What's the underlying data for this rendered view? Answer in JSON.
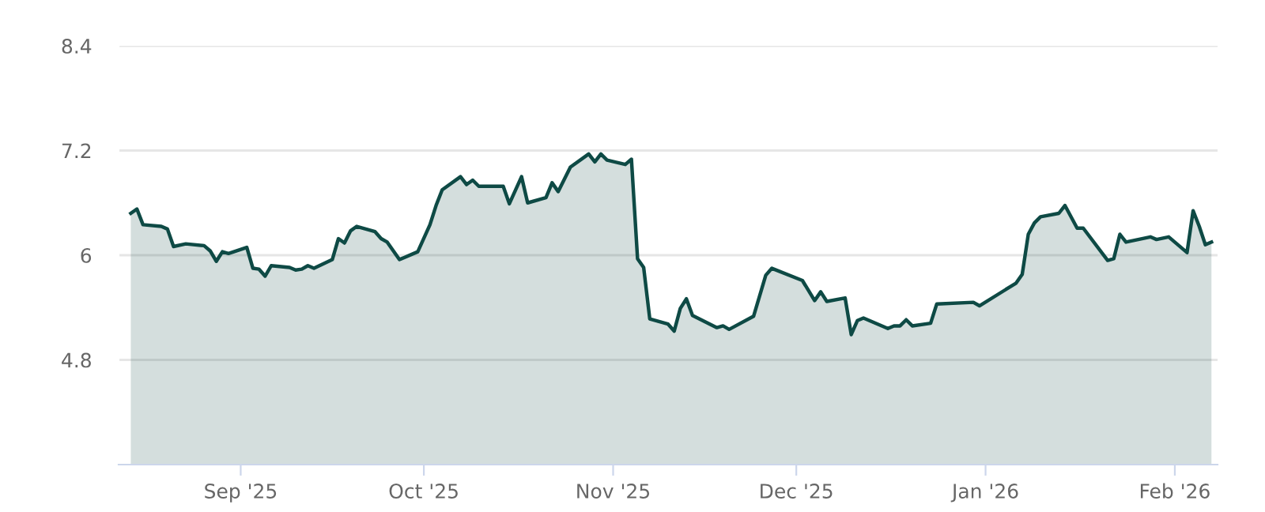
{
  "chart_data": {
    "type": "area",
    "x": [
      "2025-08-14",
      "2025-08-15",
      "2025-08-16",
      "2025-08-19",
      "2025-08-20",
      "2025-08-21",
      "2025-08-23",
      "2025-08-26",
      "2025-08-27",
      "2025-08-28",
      "2025-08-29",
      "2025-08-30",
      "2025-09-02",
      "2025-09-03",
      "2025-09-04",
      "2025-09-05",
      "2025-09-06",
      "2025-09-09",
      "2025-09-10",
      "2025-09-11",
      "2025-09-12",
      "2025-09-13",
      "2025-09-16",
      "2025-09-17",
      "2025-09-18",
      "2025-09-19",
      "2025-09-20",
      "2025-09-23",
      "2025-09-24",
      "2025-09-25",
      "2025-09-27",
      "2025-09-30",
      "2025-10-02",
      "2025-10-03",
      "2025-10-04",
      "2025-10-07",
      "2025-10-08",
      "2025-10-09",
      "2025-10-10",
      "2025-10-14",
      "2025-10-15",
      "2025-10-17",
      "2025-10-18",
      "2025-10-21",
      "2025-10-22",
      "2025-10-23",
      "2025-10-25",
      "2025-10-28",
      "2025-10-29",
      "2025-10-30",
      "2025-10-31",
      "2025-11-03",
      "2025-11-04",
      "2025-11-05",
      "2025-11-06",
      "2025-11-07",
      "2025-11-10",
      "2025-11-11",
      "2025-11-12",
      "2025-11-13",
      "2025-11-14",
      "2025-11-18",
      "2025-11-19",
      "2025-11-20",
      "2025-11-24",
      "2025-11-26",
      "2025-11-27",
      "2025-12-02",
      "2025-12-04",
      "2025-12-05",
      "2025-12-06",
      "2025-12-09",
      "2025-12-10",
      "2025-12-11",
      "2025-12-12",
      "2025-12-16",
      "2025-12-17",
      "2025-12-18",
      "2025-12-19",
      "2025-12-20",
      "2025-12-23",
      "2025-12-24",
      "2025-12-30",
      "2025-12-31",
      "2026-01-06",
      "2026-01-07",
      "2026-01-08",
      "2026-01-09",
      "2026-01-10",
      "2026-01-13",
      "2026-01-14",
      "2026-01-16",
      "2026-01-17",
      "2026-01-21",
      "2026-01-22",
      "2026-01-23",
      "2026-01-24",
      "2026-01-28",
      "2026-01-29",
      "2026-01-31",
      "2026-02-03",
      "2026-02-04",
      "2026-02-05",
      "2026-02-06",
      "2026-02-07"
    ],
    "series": [
      {
        "color": "#0e4a45",
        "values": [
          6.48,
          6.53,
          6.35,
          6.33,
          6.3,
          6.1,
          6.13,
          6.11,
          6.05,
          5.93,
          6.04,
          6.02,
          6.09,
          5.85,
          5.84,
          5.76,
          5.88,
          5.86,
          5.83,
          5.84,
          5.88,
          5.85,
          5.95,
          6.19,
          6.14,
          6.28,
          6.33,
          6.27,
          6.19,
          6.15,
          5.95,
          6.04,
          6.35,
          6.57,
          6.75,
          6.9,
          6.81,
          6.86,
          6.79,
          6.79,
          6.59,
          6.9,
          6.6,
          6.66,
          6.83,
          6.73,
          7.01,
          7.16,
          7.07,
          7.16,
          7.09,
          7.04,
          7.1,
          5.96,
          5.86,
          5.27,
          5.21,
          5.13,
          5.39,
          5.5,
          5.31,
          5.17,
          5.19,
          5.15,
          5.3,
          5.77,
          5.85,
          5.71,
          5.48,
          5.58,
          5.47,
          5.51,
          5.09,
          5.25,
          5.28,
          5.16,
          5.19,
          5.19,
          5.26,
          5.19,
          5.22,
          5.44,
          5.46,
          5.42,
          5.68,
          5.78,
          6.24,
          6.37,
          6.44,
          6.48,
          6.57,
          6.31,
          6.31,
          5.94,
          5.96,
          6.24,
          6.15,
          6.21,
          6.18,
          6.21,
          6.03,
          6.51,
          6.33,
          6.12,
          6.15
        ]
      }
    ],
    "xlim": [
      "2025-08-12",
      "2026-02-08"
    ],
    "xticks": [
      {
        "value": "2025-09-01",
        "label": "Sep '25"
      },
      {
        "value": "2025-10-01",
        "label": "Oct '25"
      },
      {
        "value": "2025-11-01",
        "label": "Nov '25"
      },
      {
        "value": "2025-12-01",
        "label": "Dec '25"
      },
      {
        "value": "2026-01-01",
        "label": "Jan '26"
      },
      {
        "value": "2026-02-01",
        "label": "Feb '26"
      }
    ],
    "ylim": [
      3.6,
      8.4
    ],
    "yticks": [
      4.8,
      6,
      7.2,
      8.4
    ],
    "grid": "y",
    "marker": "none",
    "line_style": "solid"
  }
}
